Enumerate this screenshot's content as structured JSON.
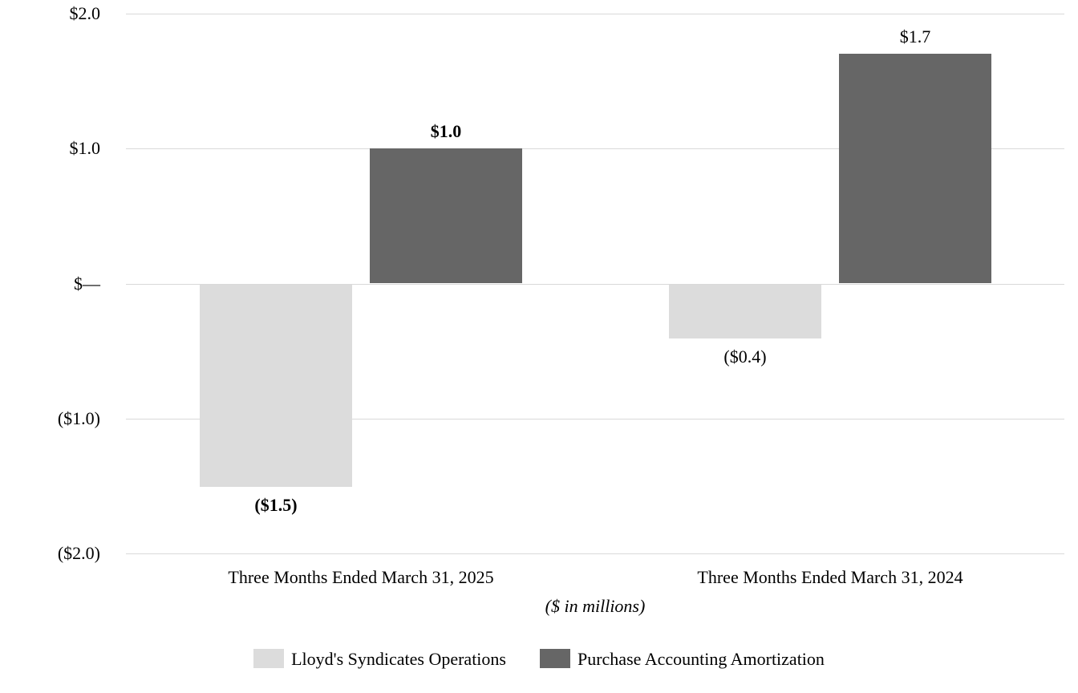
{
  "chart_data": {
    "type": "bar",
    "title": "",
    "footnote": "($ in millions)",
    "categories": [
      "Three Months Ended March 31, 2025",
      "Three Months Ended March 31, 2024"
    ],
    "series": [
      {
        "name": "Lloyd's Syndicates Operations",
        "color": "#dcdcdc",
        "values": [
          -1.5,
          -0.4
        ],
        "value_labels": [
          {
            "text": "($1.5)",
            "bold": true
          },
          {
            "text": "($0.4)",
            "bold": false
          }
        ]
      },
      {
        "name": "Purchase Accounting Amortization",
        "color": "#666666",
        "values": [
          1.0,
          1.7
        ],
        "value_labels": [
          {
            "text": "$1.0",
            "bold": true
          },
          {
            "text": "$1.7",
            "bold": false
          }
        ]
      }
    ],
    "y_axis": {
      "min": -2.0,
      "max": 2.0,
      "ticks": [
        {
          "value": 2.0,
          "label": "$2.0"
        },
        {
          "value": 1.0,
          "label": "$1.0"
        },
        {
          "value": 0,
          "label": "$—"
        },
        {
          "value": -1.0,
          "label": "($1.0)"
        },
        {
          "value": -2.0,
          "label": "($2.0)"
        }
      ]
    },
    "grid": true,
    "legend_position": "bottom",
    "colors": {
      "gridline": "#d9d9d9",
      "text": "#000000",
      "background": "#ffffff"
    }
  }
}
